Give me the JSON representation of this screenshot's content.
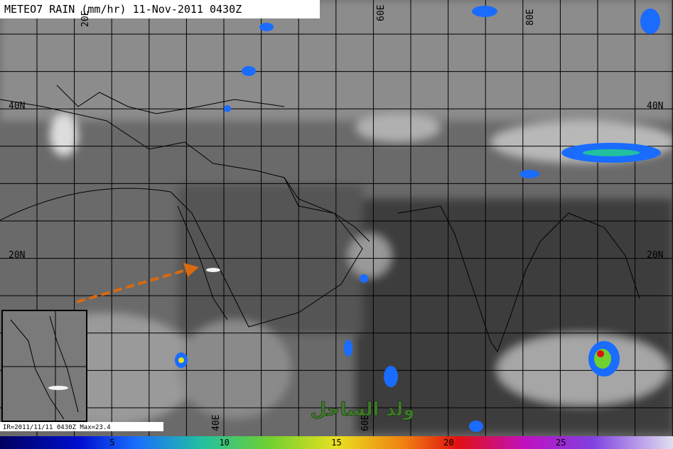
{
  "title": "METEO7 RAIN (mm/hr) 11-Nov-2011 0430Z",
  "lat_labels": [
    "40N",
    "40N",
    "20N",
    "20N"
  ],
  "lon_labels": [
    "20E",
    "60E",
    "80E",
    "40E",
    "60E"
  ],
  "inset_footer": "IR=2011/11/11 0430Z  Max=23.4",
  "watermark": "ولد الساحل",
  "colorbar": {
    "range": [
      0,
      30
    ],
    "ticks": [
      5,
      10,
      15,
      20,
      25
    ]
  }
}
